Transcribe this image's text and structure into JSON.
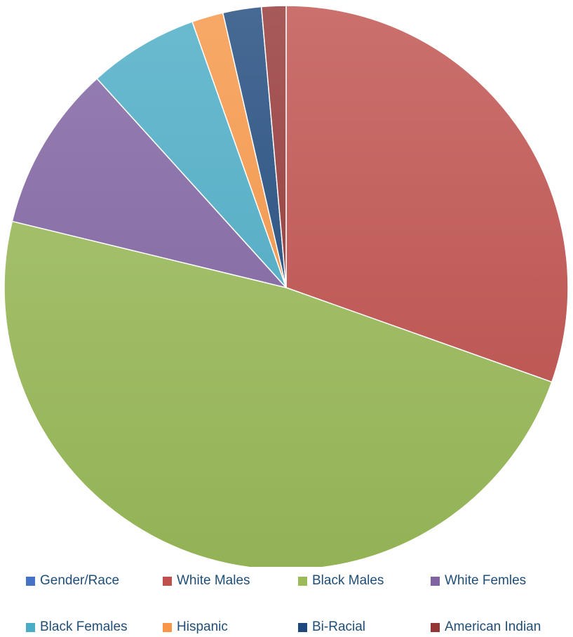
{
  "chart_data": {
    "type": "pie",
    "title": "",
    "start_angle_deg": 0,
    "direction": "clockwise",
    "series": [
      {
        "name": "",
        "slices": [
          {
            "label": "Gender/Race",
            "value": 0,
            "color": "#4472c4"
          },
          {
            "label": "White Males",
            "value": 30.4,
            "color": "#c0504d"
          },
          {
            "label": "Black Males",
            "value": 48.3,
            "color": "#9bbb59"
          },
          {
            "label": "White Femles",
            "value": 9.5,
            "color": "#8064a2"
          },
          {
            "label": "Black Females",
            "value": 6.3,
            "color": "#4bacc6"
          },
          {
            "label": "Hispanic",
            "value": 1.8,
            "color": "#f79646"
          },
          {
            "label": "Bi-Racial",
            "value": 2.2,
            "color": "#1f497d"
          },
          {
            "label": "American Indian",
            "value": 1.4,
            "color": "#943634"
          }
        ]
      }
    ],
    "legend": {
      "placement": "bottom",
      "entries": [
        {
          "label": "Gender/Race",
          "color": "#4472c4"
        },
        {
          "label": "White Males",
          "color": "#c0504d"
        },
        {
          "label": "Black Males",
          "color": "#9bbb59"
        },
        {
          "label": "White Femles",
          "color": "#8064a2"
        },
        {
          "label": "Black Females",
          "color": "#4bacc6"
        },
        {
          "label": "Hispanic",
          "color": "#f79646"
        },
        {
          "label": "Bi-Racial",
          "color": "#1f497d"
        },
        {
          "label": "American Indian",
          "color": "#943634"
        }
      ]
    }
  }
}
